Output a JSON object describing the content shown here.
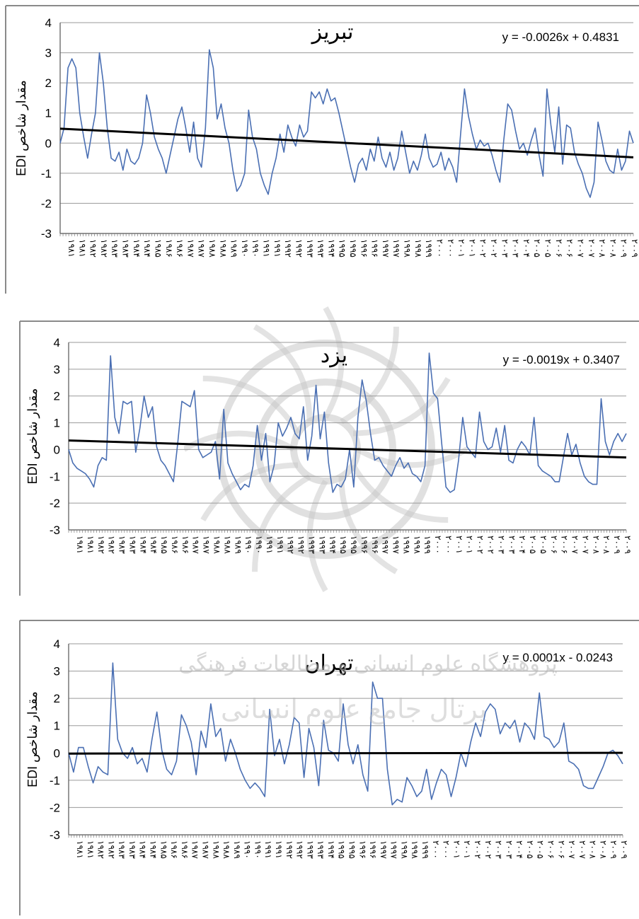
{
  "watermark": {
    "line1": "پژوهشگاه علوم انسانی و مطالعات فرهنگی",
    "line2": "پرتال جامع علوم انسانی"
  },
  "chart_data": [
    {
      "type": "line",
      "title": "تبریز",
      "ylabel": "EDI مقدار شاخص",
      "ylim": [
        -3,
        4
      ],
      "yticks": [
        "4",
        "3",
        "2",
        "1",
        "0",
        "-1",
        "-2",
        "-3"
      ],
      "xticks": [
        "۱۹۸۱",
        "۱۹۸۱",
        "۱۹۸۲",
        "۱۹۸۲",
        "۱۹۸۳",
        "۱۹۸۳",
        "۱۹۸۴",
        "۱۹۸۴",
        "۱۹۸۵",
        "۱۹۸۶",
        "۱۹۸۶",
        "۱۹۸۷",
        "۱۹۸۷",
        "۱۹۸۸",
        "۱۹۸۸",
        "۱۹۸۹",
        "۱۹۹۰",
        "۱۹۹۰",
        "۱۹۹۱",
        "۱۹۹۱",
        "۱۹۹۲",
        "۱۹۹۲",
        "۱۹۹۳",
        "۱۹۹۳",
        "۱۹۹۴",
        "۱۹۹۵",
        "۱۹۹۵",
        "۱۹۹۶",
        "۱۹۹۶",
        "۱۹۹۷",
        "۱۹۹۷",
        "۱۹۹۸",
        "۱۹۹۸",
        "۱۹۹۹",
        "۲۰۰۰",
        "۲۰۰۰",
        "۲۰۰۱",
        "۲۰۰۱",
        "۲۰۰۲",
        "۲۰۰۲",
        "۲۰۰۳",
        "۲۰۰۳",
        "۲۰۰۴",
        "۲۰۰۵",
        "۲۰۰۵",
        "۲۰۰۶",
        "۲۰۰۶",
        "۲۰۰۷",
        "۲۰۰۷",
        "۲۰۰۸",
        "۲۰۰۸",
        "۲۰۰۹",
        "۲۰۰۹"
      ],
      "trendline": {
        "label": "y = -0.0026x + 0.4831",
        "slope": -0.0026,
        "intercept": 0.4831
      },
      "series": [
        {
          "name": "",
          "values": [
            0.0,
            0.5,
            2.5,
            2.8,
            2.5,
            1.0,
            0.2,
            -0.5,
            0.3,
            1.0,
            3.0,
            2.0,
            0.5,
            -0.5,
            -0.6,
            -0.3,
            -0.9,
            -0.2,
            -0.6,
            -0.7,
            -0.5,
            0.0,
            1.6,
            1.0,
            0.2,
            -0.2,
            -0.5,
            -1.0,
            -0.4,
            0.2,
            0.8,
            1.2,
            0.5,
            -0.3,
            0.7,
            -0.5,
            -0.8,
            0.5,
            3.1,
            2.5,
            0.8,
            1.3,
            0.5,
            0.0,
            -0.9,
            -1.6,
            -1.4,
            -1.0,
            1.1,
            0.2,
            -0.2,
            -1.0,
            -1.4,
            -1.7,
            -1.0,
            -0.5,
            0.3,
            -0.3,
            0.6,
            0.2,
            -0.1,
            0.6,
            0.2,
            0.4,
            1.7,
            1.5,
            1.7,
            1.3,
            1.8,
            1.4,
            1.5,
            1.0,
            0.4,
            -0.2,
            -0.8,
            -1.3,
            -0.7,
            -0.5,
            -0.9,
            -0.2,
            -0.6,
            0.2,
            -0.5,
            -0.8,
            -0.3,
            -0.9,
            -0.5,
            0.4,
            -0.3,
            -1.0,
            -0.6,
            -0.9,
            -0.4,
            0.3,
            -0.5,
            -0.8,
            -0.7,
            -0.3,
            -0.9,
            -0.5,
            -0.8,
            -1.3,
            0.3,
            1.8,
            0.9,
            0.3,
            -0.2,
            0.1,
            -0.1,
            0.0,
            -0.4,
            -0.9,
            -1.3,
            0.1,
            1.3,
            1.1,
            0.4,
            -0.2,
            0.0,
            -0.4,
            0.1,
            0.5,
            -0.4,
            -1.1,
            1.8,
            0.6,
            -0.3,
            1.2,
            -0.7,
            0.6,
            0.5,
            -0.3,
            -0.7,
            -1.0,
            -1.5,
            -1.8,
            -1.3,
            0.7,
            0.1,
            -0.6,
            -0.9,
            -1.0,
            -0.2,
            -0.9,
            -0.6,
            0.4,
            0.0
          ]
        }
      ]
    },
    {
      "type": "line",
      "title": "یزد",
      "ylabel": "EDI مقدار شاخص",
      "ylim": [
        -3,
        4
      ],
      "yticks": [
        "4",
        "3",
        "2",
        "1",
        "0",
        "-1",
        "-2",
        "-3"
      ],
      "xticks": [
        "۱۹۸۱",
        "۱۹۸۱",
        "۱۹۸۲",
        "۱۹۸۲",
        "۱۹۸۳",
        "۱۹۸۳",
        "۱۹۸۴",
        "۱۹۸۴",
        "۱۹۸۵",
        "۱۹۸۶",
        "۱۹۸۶",
        "۱۹۸۷",
        "۱۹۸۷",
        "۱۹۸۸",
        "۱۹۸۸",
        "۱۹۸۹",
        "۱۹۹۰",
        "۱۹۹۰",
        "۱۹۹۱",
        "۱۹۹۱",
        "۱۹۹۲",
        "۱۹۹۲",
        "۱۹۹۳",
        "۱۹۹۳",
        "۱۹۹۴",
        "۱۹۹۵",
        "۱۹۹۵",
        "۱۹۹۶",
        "۱۹۹۶",
        "۱۹۹۷",
        "۱۹۹۷",
        "۱۹۹۸",
        "۱۹۹۸",
        "۱۹۹۹",
        "۲۰۰۰",
        "۲۰۰۰",
        "۲۰۰۱",
        "۲۰۰۱",
        "۲۰۰۲",
        "۲۰۰۲",
        "۲۰۰۳",
        "۲۰۰۳",
        "۲۰۰۴",
        "۲۰۰۵",
        "۲۰۰۵",
        "۲۰۰۶",
        "۲۰۰۶",
        "۲۰۰۷",
        "۲۰۰۷",
        "۲۰۰۸",
        "۲۰۰۸",
        "۲۰۰۹",
        "۲۰۰۹"
      ],
      "trendline": {
        "label": "y = -0.0019x + 0.3407",
        "slope": -0.0019,
        "intercept": 0.3407
      },
      "series": [
        {
          "name": "",
          "values": [
            0.0,
            -0.5,
            -0.7,
            -0.8,
            -0.9,
            -1.1,
            -1.4,
            -0.6,
            -0.3,
            -0.4,
            3.5,
            1.2,
            0.6,
            1.8,
            1.7,
            1.8,
            -0.1,
            0.8,
            2.0,
            1.2,
            1.6,
            0.1,
            -0.4,
            -0.6,
            -0.9,
            -1.2,
            0.2,
            1.8,
            1.7,
            1.6,
            2.2,
            0.0,
            -0.3,
            -0.2,
            -0.1,
            0.3,
            -1.1,
            1.5,
            -0.5,
            -0.9,
            -1.2,
            -1.5,
            -1.3,
            -1.4,
            -0.6,
            0.9,
            -0.4,
            0.6,
            -1.2,
            -0.6,
            1.0,
            0.5,
            0.8,
            1.2,
            0.6,
            0.4,
            1.6,
            -0.4,
            0.5,
            2.4,
            0.4,
            1.4,
            -0.5,
            -1.6,
            -1.3,
            -1.4,
            -1.1,
            0.0,
            -1.4,
            1.2,
            2.6,
            1.8,
            0.6,
            -0.4,
            -0.3,
            -0.6,
            -0.8,
            -1.0,
            -0.6,
            -0.3,
            -0.7,
            -0.5,
            -0.9,
            -1.0,
            -1.2,
            -0.6,
            3.6,
            2.1,
            1.9,
            0.2,
            -1.4,
            -1.6,
            -1.5,
            -0.4,
            1.2,
            0.1,
            -0.1,
            -0.3,
            1.4,
            0.3,
            0.0,
            0.1,
            0.8,
            -0.1,
            0.9,
            -0.4,
            -0.5,
            0.0,
            0.3,
            0.1,
            -0.2,
            1.2,
            -0.6,
            -0.8,
            -0.9,
            -1.0,
            -1.2,
            -1.2,
            -0.3,
            0.6,
            -0.2,
            0.2,
            -0.5,
            -1.0,
            -1.2,
            -1.3,
            -1.3,
            1.9,
            0.3,
            -0.2,
            0.3,
            0.6,
            0.3,
            0.6
          ]
        }
      ]
    },
    {
      "type": "line",
      "title": "تهران",
      "ylabel": "EDI مقدار شاخص",
      "ylim": [
        -3,
        4
      ],
      "yticks": [
        "4",
        "3",
        "2",
        "1",
        "0",
        "-1",
        "-2",
        "-3"
      ],
      "xticks": [
        "۱۹۸۱",
        "۱۹۸۱",
        "۱۹۸۲",
        "۱۹۸۲",
        "۱۹۸۳",
        "۱۹۸۳",
        "۱۹۸۴",
        "۱۹۸۴",
        "۱۹۸۵",
        "۱۹۸۶",
        "۱۹۸۶",
        "۱۹۸۷",
        "۱۹۸۷",
        "۱۹۸۸",
        "۱۹۸۸",
        "۱۹۸۹",
        "۱۹۹۰",
        "۱۹۹۰",
        "۱۹۹۱",
        "۱۹۹۱",
        "۱۹۹۲",
        "۱۹۹۲",
        "۱۹۹۳",
        "۱۹۹۳",
        "۱۹۹۴",
        "۱۹۹۵",
        "۱۹۹۵",
        "۱۹۹۶",
        "۱۹۹۶",
        "۱۹۹۷",
        "۱۹۹۷",
        "۱۹۹۸",
        "۱۹۹۸",
        "۱۹۹۹",
        "۲۰۰۰",
        "۲۰۰۰",
        "۲۰۰۱",
        "۲۰۰۱",
        "۲۰۰۲",
        "۲۰۰۲",
        "۲۰۰۳",
        "۲۰۰۳",
        "۲۰۰۴",
        "۲۰۰۵",
        "۲۰۰۵",
        "۲۰۰۶",
        "۲۰۰۶",
        "۲۰۰۷",
        "۲۰۰۷",
        "۲۰۰۸",
        "۲۰۰۸",
        "۲۰۰۹",
        "۲۰۰۹"
      ],
      "trendline": {
        "label": "y = 0.0001x - 0.0243",
        "slope": 0.0001,
        "intercept": -0.0243
      },
      "series": [
        {
          "name": "",
          "values": [
            0.0,
            -0.7,
            0.2,
            0.2,
            -0.5,
            -1.1,
            -0.5,
            -0.7,
            -0.8,
            3.3,
            0.5,
            0.0,
            -0.2,
            0.2,
            -0.4,
            -0.2,
            -0.7,
            0.5,
            1.5,
            0.1,
            -0.6,
            -0.8,
            -0.3,
            1.4,
            1.0,
            0.4,
            -0.8,
            0.8,
            0.2,
            1.8,
            0.6,
            0.9,
            -0.3,
            0.5,
            0.0,
            -0.6,
            -1.0,
            -1.3,
            -1.1,
            -1.3,
            -1.6,
            1.6,
            -0.1,
            0.5,
            -0.4,
            0.3,
            1.3,
            1.1,
            -0.9,
            0.9,
            0.2,
            -1.2,
            1.2,
            0.1,
            0.0,
            -0.3,
            1.8,
            0.3,
            -0.4,
            0.3,
            -0.8,
            -1.4,
            2.6,
            2.0,
            2.0,
            -0.6,
            -1.9,
            -1.7,
            -1.8,
            -0.9,
            -1.2,
            -1.6,
            -1.4,
            -0.6,
            -1.7,
            -1.1,
            -0.6,
            -0.8,
            -1.6,
            -0.9,
            0.0,
            -0.5,
            0.4,
            1.1,
            0.6,
            1.5,
            1.8,
            1.6,
            0.7,
            1.1,
            0.9,
            1.2,
            0.4,
            1.1,
            0.9,
            0.5,
            2.2,
            0.6,
            0.5,
            0.2,
            0.4,
            1.1,
            -0.3,
            -0.4,
            -0.6,
            -1.2,
            -1.3,
            -1.3,
            -0.9,
            -0.5,
            0.0,
            0.1,
            -0.1,
            -0.4
          ]
        }
      ]
    }
  ]
}
